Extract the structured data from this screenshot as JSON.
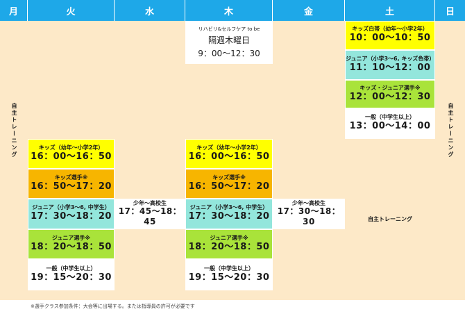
{
  "days": [
    "月",
    "火",
    "水",
    "木",
    "金",
    "土",
    "日"
  ],
  "mon": {
    "label": "自主トレーニング"
  },
  "sun": {
    "label": "自主トレーニング"
  },
  "thu_top": {
    "label": "リハビリ&セルフケア to be",
    "line2": "隔週木曜日",
    "time": "9：00〜12：30"
  },
  "sat": [
    {
      "label": "キッズ白帯（幼年〜小学2年）",
      "time": "10：00〜10：50"
    },
    {
      "label": "ジュニア（小学3〜6, キッズ色帯）",
      "time": "11：10〜12：00"
    },
    {
      "label": "キッズ・ジュニア選手※",
      "time": "12：00〜12：30"
    },
    {
      "label": "一般（中学生以上）",
      "time": "13：00〜14：00"
    }
  ],
  "sat_free": {
    "label": "自主トレーニング"
  },
  "tue": [
    {
      "label": "キッズ（幼年〜小学2年）",
      "time": "16：00〜16：50"
    },
    {
      "label": "キッズ選手※",
      "time": "16：50〜17：20"
    },
    {
      "label": "ジュニア（小学3〜6, 中学生）",
      "time": "17：30〜18：20"
    },
    {
      "label": "ジュニア選手※",
      "time": "18：20〜18：50"
    },
    {
      "label": "一般（中学生以上）",
      "time": "19：15〜20：30"
    }
  ],
  "wed": {
    "label": "少年〜高校生",
    "time": "17：45〜18：45"
  },
  "thu": [
    {
      "label": "キッズ（幼年〜小学2年）",
      "time": "16：00〜16：50"
    },
    {
      "label": "キッズ選手※",
      "time": "16：50〜17：20"
    },
    {
      "label": "ジュニア（小学3〜6, 中学生）",
      "time": "17：30〜18：20"
    },
    {
      "label": "ジュニア選手※",
      "time": "18：20〜18：50"
    },
    {
      "label": "一般（中学生以上）",
      "time": "19：15〜20：30"
    }
  ],
  "fri": {
    "label": "少年〜高校生",
    "time": "17：30〜18：30"
  },
  "note": "※選手クラス参加条件：大会等に出場する。または指導員の許可が必要です",
  "colors": {
    "header": "#1ea8e8",
    "background": "#fde9c8",
    "yellow": "#ffff00",
    "orange": "#f7b500",
    "teal": "#93e6dc",
    "green": "#a9e33a"
  }
}
